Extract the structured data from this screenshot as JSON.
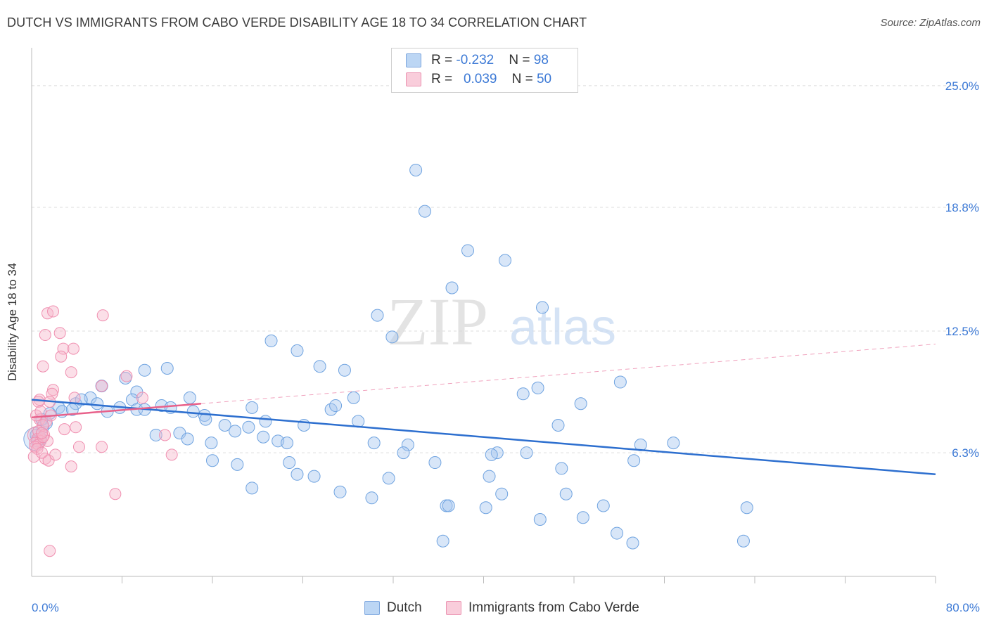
{
  "header": {
    "title": "DUTCH VS IMMIGRANTS FROM CABO VERDE DISABILITY AGE 18 TO 34 CORRELATION CHART",
    "source": "Source: ZipAtlas.com"
  },
  "watermark": {
    "zip": "ZIP",
    "atlas": "atlas"
  },
  "legend_top": [
    {
      "r_label": "R = ",
      "r_value": "-0.232",
      "n_label": "N = ",
      "n_value": "98",
      "color": "#a8c8f0"
    },
    {
      "r_label": "R = ",
      "r_value": "0.039",
      "n_label": "N = ",
      "n_value": "50",
      "color": "#f7b8cc"
    }
  ],
  "legend_bottom": [
    {
      "label": "Dutch",
      "color": "#a8c8f0"
    },
    {
      "label": "Immigrants from Cabo Verde",
      "color": "#f7b8cc"
    }
  ],
  "chart_data": {
    "type": "scatter",
    "title": "DUTCH VS IMMIGRANTS FROM CABO VERDE DISABILITY AGE 18 TO 34 CORRELATION CHART",
    "xlabel": "",
    "ylabel": "Disability Age 18 to 34",
    "xlim": [
      0,
      80
    ],
    "ylim": [
      0,
      26.5
    ],
    "x_tick_labels": [
      "0.0%",
      "80.0%"
    ],
    "y_tick_labels": [
      "6.3%",
      "12.5%",
      "18.8%",
      "25.0%"
    ],
    "y_ticks": [
      6.3,
      12.5,
      18.8,
      25.0
    ],
    "grid": true,
    "colors": {
      "dutch": "#6fa3e0",
      "dutch_line": "#2d6fcf",
      "cabo": "#f08fb0",
      "cabo_line": "#e8608a",
      "tick_label": "#3d7ad6"
    },
    "series": [
      {
        "name": "Dutch",
        "R": -0.232,
        "N": 98,
        "trend": {
          "x": [
            0,
            80
          ],
          "y": [
            9.0,
            5.2
          ]
        },
        "points": [
          [
            34.0,
            20.7
          ],
          [
            34.8,
            18.6
          ],
          [
            38.6,
            16.6
          ],
          [
            41.9,
            16.1
          ],
          [
            37.2,
            14.7
          ],
          [
            45.2,
            13.7
          ],
          [
            30.6,
            13.3
          ],
          [
            31.9,
            12.2
          ],
          [
            21.2,
            12.0
          ],
          [
            23.5,
            11.5
          ],
          [
            25.5,
            10.7
          ],
          [
            27.7,
            10.5
          ],
          [
            12.0,
            10.6
          ],
          [
            10.0,
            10.5
          ],
          [
            8.3,
            10.1
          ],
          [
            6.2,
            9.7
          ],
          [
            9.3,
            9.4
          ],
          [
            5.2,
            9.1
          ],
          [
            14.0,
            9.1
          ],
          [
            8.9,
            9.0
          ],
          [
            28.5,
            9.1
          ],
          [
            43.5,
            9.3
          ],
          [
            44.8,
            9.6
          ],
          [
            52.1,
            9.9
          ],
          [
            2.4,
            8.6
          ],
          [
            3.9,
            8.8
          ],
          [
            4.4,
            9.0
          ],
          [
            5.8,
            8.8
          ],
          [
            7.8,
            8.6
          ],
          [
            9.3,
            8.5
          ],
          [
            11.5,
            8.7
          ],
          [
            12.3,
            8.6
          ],
          [
            14.3,
            8.4
          ],
          [
            15.3,
            8.2
          ],
          [
            19.5,
            8.6
          ],
          [
            26.5,
            8.5
          ],
          [
            26.9,
            8.7
          ],
          [
            48.6,
            8.8
          ],
          [
            1.6,
            8.3
          ],
          [
            2.7,
            8.4
          ],
          [
            3.6,
            8.5
          ],
          [
            6.7,
            8.4
          ],
          [
            10.0,
            8.5
          ],
          [
            15.4,
            8.0
          ],
          [
            17.1,
            7.7
          ],
          [
            20.7,
            7.9
          ],
          [
            24.1,
            7.7
          ],
          [
            28.9,
            7.9
          ],
          [
            46.6,
            7.7
          ],
          [
            18.0,
            7.4
          ],
          [
            19.2,
            7.6
          ],
          [
            11.0,
            7.2
          ],
          [
            13.1,
            7.3
          ],
          [
            13.8,
            7.0
          ],
          [
            20.5,
            7.1
          ],
          [
            21.8,
            6.9
          ],
          [
            22.6,
            6.8
          ],
          [
            15.9,
            6.8
          ],
          [
            30.3,
            6.8
          ],
          [
            33.3,
            6.7
          ],
          [
            32.9,
            6.3
          ],
          [
            41.2,
            6.3
          ],
          [
            43.8,
            6.3
          ],
          [
            53.9,
            6.7
          ],
          [
            56.8,
            6.8
          ],
          [
            16.0,
            5.9
          ],
          [
            18.2,
            5.7
          ],
          [
            22.8,
            5.8
          ],
          [
            35.7,
            5.8
          ],
          [
            40.7,
            6.2
          ],
          [
            46.9,
            5.5
          ],
          [
            53.3,
            5.9
          ],
          [
            23.5,
            5.2
          ],
          [
            25.0,
            5.1
          ],
          [
            31.6,
            5.0
          ],
          [
            40.5,
            5.1
          ],
          [
            19.5,
            4.5
          ],
          [
            27.3,
            4.3
          ],
          [
            30.1,
            4.0
          ],
          [
            41.6,
            4.2
          ],
          [
            47.3,
            4.2
          ],
          [
            36.7,
            3.6
          ],
          [
            36.9,
            3.6
          ],
          [
            40.2,
            3.5
          ],
          [
            50.6,
            3.6
          ],
          [
            63.3,
            3.5
          ],
          [
            45.0,
            2.9
          ],
          [
            48.8,
            3.0
          ],
          [
            51.8,
            2.2
          ],
          [
            36.4,
            1.8
          ],
          [
            53.2,
            1.7
          ],
          [
            63.0,
            1.8
          ],
          [
            1.0,
            7.6
          ],
          [
            0.4,
            7.2
          ],
          [
            0.8,
            7.0
          ],
          [
            0.5,
            6.9
          ],
          [
            1.3,
            7.8
          ],
          [
            0.9,
            8.0
          ]
        ]
      },
      {
        "name": "Immigrants from Cabo Verde",
        "R": 0.039,
        "N": 50,
        "trend": {
          "x": [
            0,
            15
          ],
          "y": [
            8.1,
            8.8
          ]
        },
        "points": [
          [
            1.4,
            13.4
          ],
          [
            1.9,
            13.5
          ],
          [
            6.3,
            13.3
          ],
          [
            1.2,
            12.3
          ],
          [
            2.5,
            12.4
          ],
          [
            2.8,
            11.6
          ],
          [
            3.7,
            11.6
          ],
          [
            2.6,
            11.2
          ],
          [
            1.0,
            10.7
          ],
          [
            3.5,
            10.4
          ],
          [
            8.4,
            10.2
          ],
          [
            6.2,
            9.7
          ],
          [
            1.9,
            9.5
          ],
          [
            1.8,
            9.3
          ],
          [
            3.8,
            9.1
          ],
          [
            0.7,
            9.0
          ],
          [
            0.6,
            8.9
          ],
          [
            1.6,
            8.9
          ],
          [
            9.8,
            9.1
          ],
          [
            0.7,
            8.0
          ],
          [
            1.3,
            7.9
          ],
          [
            1.0,
            7.7
          ],
          [
            2.9,
            7.5
          ],
          [
            3.9,
            7.6
          ],
          [
            0.6,
            7.4
          ],
          [
            1.1,
            7.2
          ],
          [
            0.5,
            7.0
          ],
          [
            0.8,
            6.9
          ],
          [
            1.4,
            6.9
          ],
          [
            0.3,
            6.8
          ],
          [
            0.6,
            6.7
          ],
          [
            0.3,
            6.6
          ],
          [
            0.5,
            6.5
          ],
          [
            4.2,
            6.6
          ],
          [
            6.2,
            6.6
          ],
          [
            11.8,
            7.2
          ],
          [
            0.2,
            6.1
          ],
          [
            1.2,
            6.0
          ],
          [
            1.5,
            5.9
          ],
          [
            2.1,
            6.2
          ],
          [
            3.5,
            5.6
          ],
          [
            12.4,
            6.2
          ],
          [
            7.4,
            4.2
          ],
          [
            1.6,
            1.3
          ],
          [
            1.0,
            7.1
          ],
          [
            0.9,
            7.3
          ],
          [
            0.4,
            8.2
          ],
          [
            0.8,
            8.4
          ],
          [
            1.7,
            8.2
          ],
          [
            0.9,
            6.3
          ]
        ]
      }
    ]
  }
}
